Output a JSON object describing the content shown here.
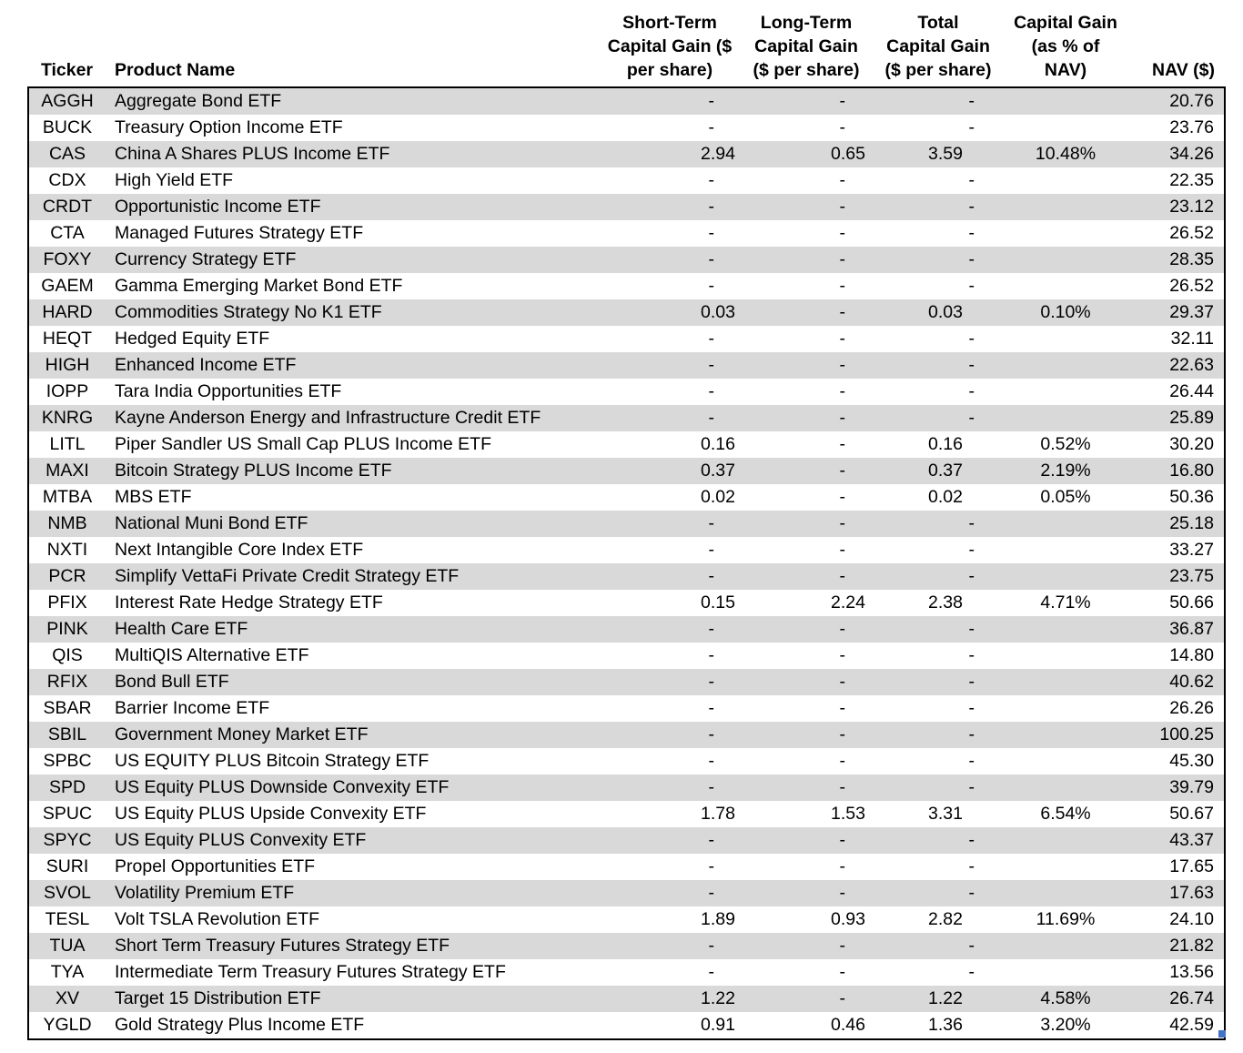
{
  "table": {
    "headers": {
      "ticker": "Ticker",
      "name": "Product Name",
      "st": "Short-Term\nCapital Gain ($\nper share)",
      "lt": "Long-Term\nCapital Gain\n($ per share)",
      "total": "Total\nCapital Gain\n($ per share)",
      "pct": "Capital Gain\n(as % of\nNAV)",
      "nav": "NAV ($)"
    },
    "rows": [
      {
        "ticker": "AGGH",
        "name": "Aggregate Bond ETF",
        "st": "-",
        "lt": "-",
        "total": "-",
        "pct": "",
        "nav": "20.76"
      },
      {
        "ticker": "BUCK",
        "name": "Treasury Option Income ETF",
        "st": "-",
        "lt": "-",
        "total": "-",
        "pct": "",
        "nav": "23.76"
      },
      {
        "ticker": "CAS",
        "name": "China A Shares PLUS Income ETF",
        "st": "2.94",
        "lt": "0.65",
        "total": "3.59",
        "pct": "10.48%",
        "nav": "34.26"
      },
      {
        "ticker": "CDX",
        "name": "High Yield ETF",
        "st": "-",
        "lt": "-",
        "total": "-",
        "pct": "",
        "nav": "22.35"
      },
      {
        "ticker": "CRDT",
        "name": "Opportunistic Income ETF",
        "st": "-",
        "lt": "-",
        "total": "-",
        "pct": "",
        "nav": "23.12"
      },
      {
        "ticker": "CTA",
        "name": "Managed Futures Strategy ETF",
        "st": "-",
        "lt": "-",
        "total": "-",
        "pct": "",
        "nav": "26.52"
      },
      {
        "ticker": "FOXY",
        "name": "Currency Strategy ETF",
        "st": "-",
        "lt": "-",
        "total": "-",
        "pct": "",
        "nav": "28.35"
      },
      {
        "ticker": "GAEM",
        "name": "Gamma Emerging Market Bond ETF",
        "st": "-",
        "lt": "-",
        "total": "-",
        "pct": "",
        "nav": "26.52"
      },
      {
        "ticker": "HARD",
        "name": "Commodities Strategy No K1 ETF",
        "st": "0.03",
        "lt": "-",
        "total": "0.03",
        "pct": "0.10%",
        "nav": "29.37"
      },
      {
        "ticker": "HEQT",
        "name": "Hedged Equity ETF",
        "st": "-",
        "lt": "-",
        "total": "-",
        "pct": "",
        "nav": "32.11"
      },
      {
        "ticker": "HIGH",
        "name": "Enhanced Income ETF",
        "st": "-",
        "lt": "-",
        "total": "-",
        "pct": "",
        "nav": "22.63"
      },
      {
        "ticker": "IOPP",
        "name": "Tara India Opportunities ETF",
        "st": "-",
        "lt": "-",
        "total": "-",
        "pct": "",
        "nav": "26.44"
      },
      {
        "ticker": "KNRG",
        "name": "Kayne Anderson Energy and Infrastructure Credit ETF",
        "st": "-",
        "lt": "-",
        "total": "-",
        "pct": "",
        "nav": "25.89"
      },
      {
        "ticker": "LITL",
        "name": "Piper Sandler US Small Cap PLUS Income ETF",
        "st": "0.16",
        "lt": "-",
        "total": "0.16",
        "pct": "0.52%",
        "nav": "30.20"
      },
      {
        "ticker": "MAXI",
        "name": "Bitcoin Strategy PLUS Income ETF",
        "st": "0.37",
        "lt": "-",
        "total": "0.37",
        "pct": "2.19%",
        "nav": "16.80"
      },
      {
        "ticker": "MTBA",
        "name": "MBS ETF",
        "st": "0.02",
        "lt": "-",
        "total": "0.02",
        "pct": "0.05%",
        "nav": "50.36"
      },
      {
        "ticker": "NMB",
        "name": "National Muni Bond ETF",
        "st": "-",
        "lt": "-",
        "total": "-",
        "pct": "",
        "nav": "25.18"
      },
      {
        "ticker": "NXTI",
        "name": "Next Intangible Core Index ETF",
        "st": "-",
        "lt": "-",
        "total": "-",
        "pct": "",
        "nav": "33.27"
      },
      {
        "ticker": "PCR",
        "name": "Simplify VettaFi Private Credit Strategy ETF",
        "st": "-",
        "lt": "-",
        "total": "-",
        "pct": "",
        "nav": "23.75"
      },
      {
        "ticker": "PFIX",
        "name": "Interest Rate Hedge Strategy ETF",
        "st": "0.15",
        "lt": "2.24",
        "total": "2.38",
        "pct": "4.71%",
        "nav": "50.66"
      },
      {
        "ticker": "PINK",
        "name": "Health Care ETF",
        "st": "-",
        "lt": "-",
        "total": "-",
        "pct": "",
        "nav": "36.87"
      },
      {
        "ticker": "QIS",
        "name": "MultiQIS Alternative ETF",
        "st": "-",
        "lt": "-",
        "total": "-",
        "pct": "",
        "nav": "14.80"
      },
      {
        "ticker": "RFIX",
        "name": "Bond Bull ETF",
        "st": "-",
        "lt": "-",
        "total": "-",
        "pct": "",
        "nav": "40.62"
      },
      {
        "ticker": "SBAR",
        "name": "Barrier Income ETF",
        "st": "-",
        "lt": "-",
        "total": "-",
        "pct": "",
        "nav": "26.26"
      },
      {
        "ticker": "SBIL",
        "name": "Government Money Market ETF",
        "st": "-",
        "lt": "-",
        "total": "-",
        "pct": "",
        "nav": "100.25"
      },
      {
        "ticker": "SPBC",
        "name": "US EQUITY PLUS Bitcoin Strategy ETF",
        "st": "-",
        "lt": "-",
        "total": "-",
        "pct": "",
        "nav": "45.30"
      },
      {
        "ticker": "SPD",
        "name": "US Equity PLUS Downside Convexity ETF",
        "st": "-",
        "lt": "-",
        "total": "-",
        "pct": "",
        "nav": "39.79"
      },
      {
        "ticker": "SPUC",
        "name": "US Equity PLUS Upside Convexity ETF",
        "st": "1.78",
        "lt": "1.53",
        "total": "3.31",
        "pct": "6.54%",
        "nav": "50.67"
      },
      {
        "ticker": "SPYC",
        "name": "US Equity PLUS Convexity ETF",
        "st": "-",
        "lt": "-",
        "total": "-",
        "pct": "",
        "nav": "43.37"
      },
      {
        "ticker": "SURI",
        "name": "Propel Opportunities ETF",
        "st": "-",
        "lt": "-",
        "total": "-",
        "pct": "",
        "nav": "17.65"
      },
      {
        "ticker": "SVOL",
        "name": "Volatility Premium ETF",
        "st": "-",
        "lt": "-",
        "total": "-",
        "pct": "",
        "nav": "17.63"
      },
      {
        "ticker": "TESL",
        "name": "Volt TSLA Revolution ETF",
        "st": "1.89",
        "lt": "0.93",
        "total": "2.82",
        "pct": "11.69%",
        "nav": "24.10"
      },
      {
        "ticker": "TUA",
        "name": "Short Term Treasury Futures Strategy ETF",
        "st": "-",
        "lt": "-",
        "total": "-",
        "pct": "",
        "nav": "21.82"
      },
      {
        "ticker": "TYA",
        "name": "Intermediate Term Treasury Futures Strategy ETF",
        "st": "-",
        "lt": "-",
        "total": "-",
        "pct": "",
        "nav": "13.56"
      },
      {
        "ticker": "XV",
        "name": "Target 15 Distribution ETF",
        "st": "1.22",
        "lt": "-",
        "total": "1.22",
        "pct": "4.58%",
        "nav": "26.74"
      },
      {
        "ticker": "YGLD",
        "name": "Gold Strategy Plus Income ETF",
        "st": "0.91",
        "lt": "0.46",
        "total": "1.36",
        "pct": "3.20%",
        "nav": "42.59"
      }
    ]
  },
  "colors": {
    "row_stripe": "#d9d9d9",
    "table_border": "#000000",
    "selection_handle": "#4472c4"
  }
}
